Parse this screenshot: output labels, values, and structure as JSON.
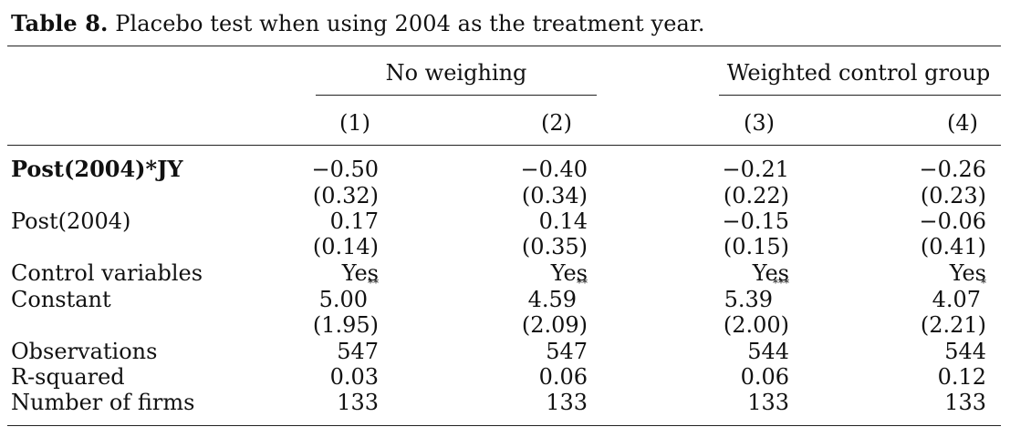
{
  "caption": {
    "label": "Table 8.",
    "text": " Placebo test when using 2004 as the treatment year."
  },
  "header": {
    "group1": "No weighing",
    "group2": "Weighted control group",
    "columns": [
      "(1)",
      "(2)",
      "(3)",
      "(4)"
    ]
  },
  "rows": [
    {
      "label": "Post(2004)*JY",
      "bold": true,
      "values": [
        "−0.50",
        "−0.40",
        "−0.21",
        "−0.26"
      ]
    },
    {
      "label": "",
      "values": [
        "(0.32)",
        "(0.34)",
        "(0.22)",
        "(0.23)"
      ]
    },
    {
      "label": "Post(2004)",
      "values": [
        "0.17",
        "0.14",
        "−0.15",
        "−0.06"
      ]
    },
    {
      "label": "",
      "values": [
        "(0.14)",
        "(0.35)",
        "(0.15)",
        "(0.41)"
      ]
    },
    {
      "label": "Control variables",
      "values": [
        "Yes",
        "Yes",
        "Yes",
        "Yes"
      ]
    },
    {
      "label": "Constant",
      "values": [
        "5.00",
        "4.59",
        "5.39",
        "4.07"
      ],
      "stars": [
        "**",
        "**",
        "***",
        "*"
      ]
    },
    {
      "label": "",
      "values": [
        "(1.95)",
        "(2.09)",
        "(2.00)",
        "(2.21)"
      ]
    },
    {
      "label": "Observations",
      "values": [
        "547",
        "547",
        "544",
        "544"
      ]
    },
    {
      "label": "R-squared",
      "values": [
        "0.03",
        "0.06",
        "0.06",
        "0.12"
      ]
    },
    {
      "label": "Number of firms",
      "values": [
        "133",
        "133",
        "133",
        "133"
      ]
    }
  ]
}
